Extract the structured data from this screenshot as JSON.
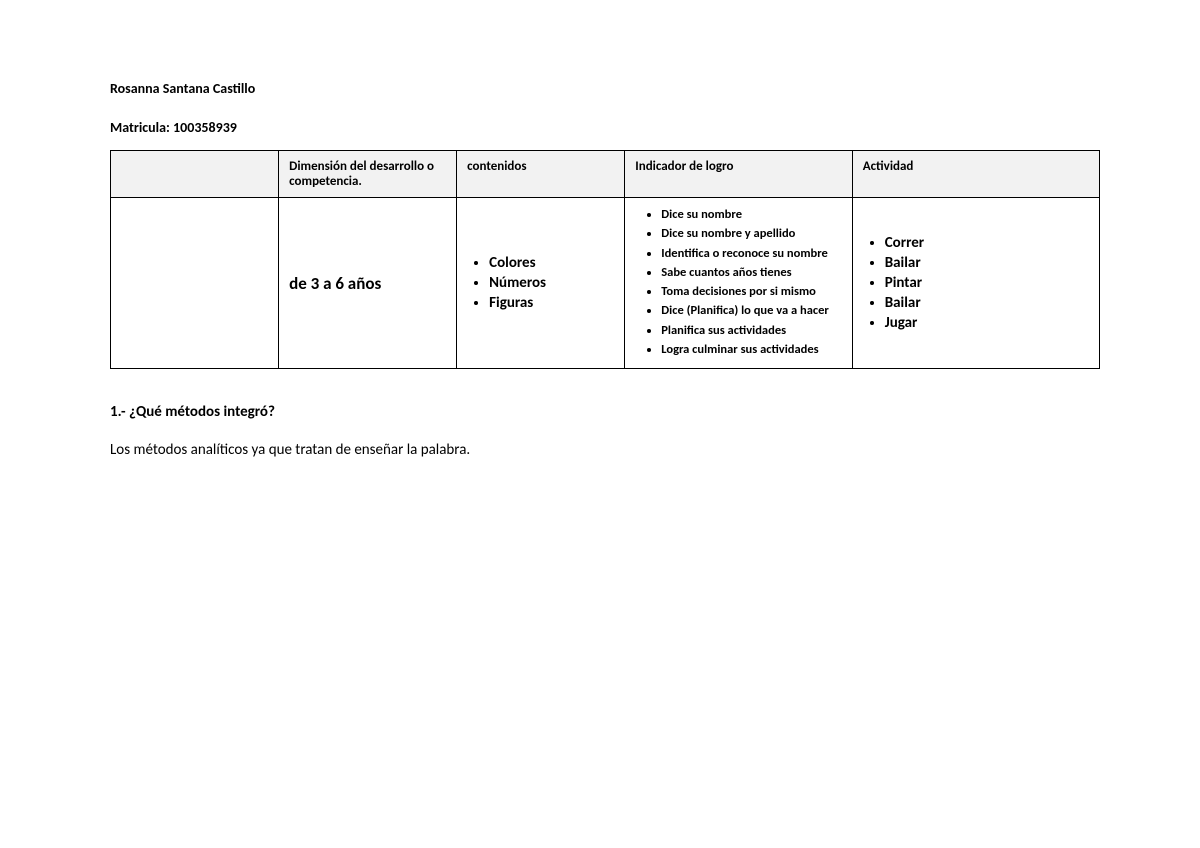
{
  "author": "Rosanna Santana Castillo",
  "matricula_label": "Matricula: 100358939",
  "headers": {
    "col1": "",
    "col2": "Dimensión del desarrollo o competencia.",
    "col3": "contenidos",
    "col4": "Indicador de logro",
    "col5": "Actividad"
  },
  "row": {
    "age": "de 3 a 6 años",
    "contenidos": [
      "Colores",
      "Números",
      "Figuras"
    ],
    "indicadores": [
      "Dice su nombre",
      "Dice su nombre y apellido",
      "Identifica o reconoce su nombre",
      "Sabe cuantos años tienes",
      "Toma decisiones por si mismo",
      "Dice (Planifica) lo que va a hacer",
      "Planifica sus actividades",
      "Logra culminar sus actividades"
    ],
    "actividades": [
      "Correr",
      "Bailar",
      "Pintar",
      "Bailar",
      "Jugar"
    ]
  },
  "question": "1.- ¿Qué métodos integró?",
  "answer": "Los métodos analíticos ya que tratan de enseñar la palabra."
}
